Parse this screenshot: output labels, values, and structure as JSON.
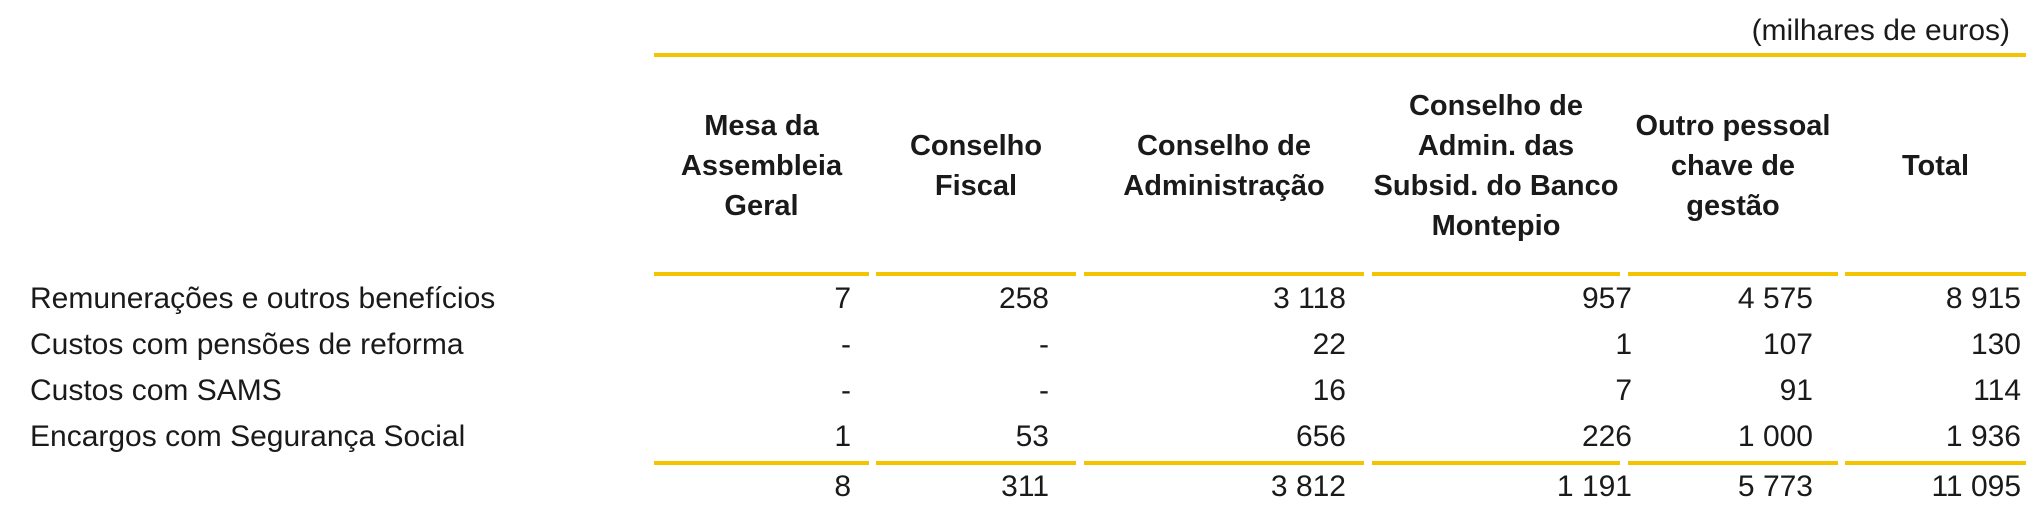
{
  "unit_note": "(milhares de euros)",
  "columns": [
    "Mesa da Assembleia Geral",
    "Conselho Fiscal",
    "Conselho de Administração",
    "Conselho de Admin. das Subsid. do Banco Montepio",
    "Outro pessoal chave de gestão",
    "Total"
  ],
  "rows": [
    {
      "label": "Remunerações e outros benefícios",
      "values": [
        "7",
        "258",
        "3 118",
        "957",
        "4 575",
        "8 915"
      ]
    },
    {
      "label": "Custos com pensões de reforma",
      "values": [
        "-",
        "-",
        "22",
        "1",
        "107",
        "130"
      ]
    },
    {
      "label": "Custos com  SAMS",
      "values": [
        "-",
        "-",
        "16",
        "7",
        "91",
        "114"
      ]
    },
    {
      "label": "Encargos com Segurança Social",
      "values": [
        "1",
        "53",
        "656",
        "226",
        "1 000",
        "1 936"
      ]
    }
  ],
  "totals": [
    "8",
    "311",
    "3 812",
    "1 191",
    "5 773",
    "11 095"
  ]
}
